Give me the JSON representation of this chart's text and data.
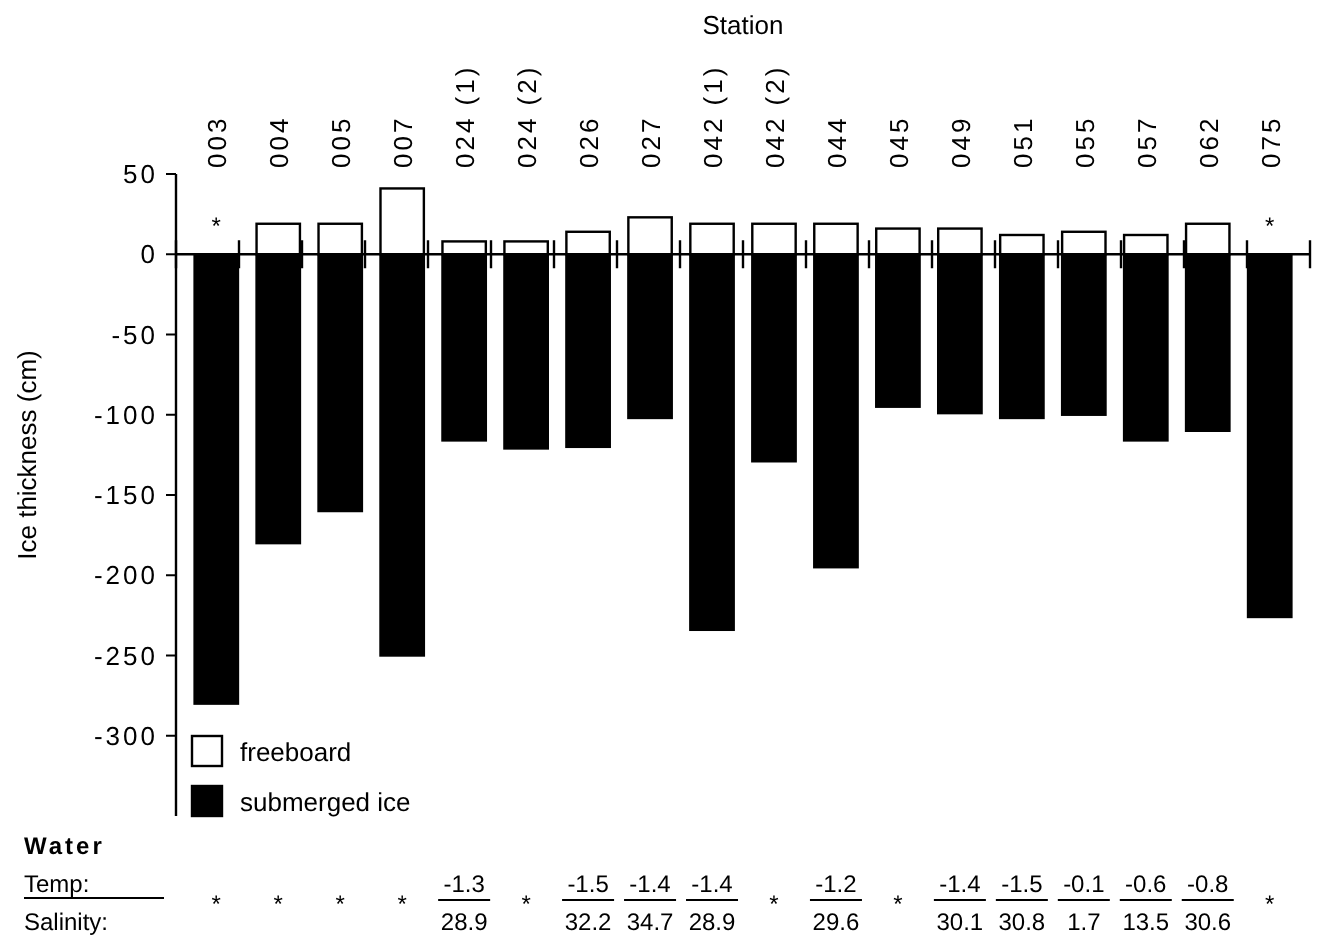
{
  "chart_data": {
    "type": "bar",
    "title": "Station",
    "ylabel": "Ice thickness (cm)",
    "categories": [
      "003",
      "004",
      "005",
      "007",
      "024 (1)",
      "024 (2)",
      "026",
      "027",
      "042 (1)",
      "042 (2)",
      "044",
      "045",
      "049",
      "051",
      "055",
      "057",
      "062",
      "075"
    ],
    "series": [
      {
        "name": "freeboard",
        "color": "#ffffff",
        "values": [
          null,
          19,
          19,
          41,
          8,
          8,
          14,
          23,
          19,
          19,
          19,
          16,
          16,
          12,
          14,
          12,
          19,
          null
        ]
      },
      {
        "name": "submerged ice",
        "color": "#000000",
        "values": [
          -280,
          -180,
          -160,
          -250,
          -116,
          -121,
          -120,
          -102,
          -234,
          -129,
          -195,
          -95,
          -99,
          -102,
          -100,
          -116,
          -110,
          -226
        ]
      }
    ],
    "stacked": true,
    "ylim": [
      -350,
      50
    ],
    "yticks": [
      50,
      0,
      -50,
      -100,
      -150,
      -200,
      -250,
      -300
    ],
    "legend": "bottom left",
    "annotations": [
      "*",
      "*",
      "Water",
      "Temp:",
      "Salinity:",
      "*",
      "*",
      "*",
      "*",
      "-1.3\n28.9",
      "*",
      "-1.5\n32.2",
      "-1.4\n34.7",
      "-1.4\n28.9",
      "*",
      "-1.2\n29.6",
      "*",
      "-1.4\n30.1",
      "-1.5\n30.8",
      "-0.1\n1.7",
      "-0.6\n13.5",
      "-0.8\n30.6",
      "*"
    ]
  }
}
